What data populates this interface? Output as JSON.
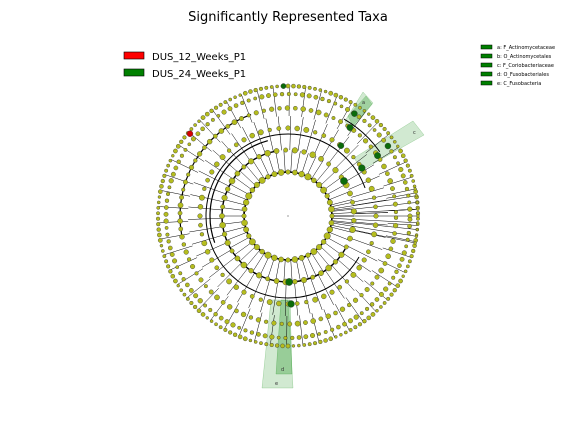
{
  "title": "Significantly Represented Taxa",
  "legend": [
    {
      "label": "DUS_12_Weeks_P1",
      "color": "#ff0000"
    },
    {
      "label": "DUS_24_Weeks_P1",
      "color": "#008000"
    }
  ],
  "taxa_key": [
    {
      "label": "a: F_Actinomycetaceae",
      "color": "#008000"
    },
    {
      "label": "b: O_Actinomycetales",
      "color": "#008000"
    },
    {
      "label": "c: F_Coriobacteriaceae",
      "color": "#008000"
    },
    {
      "label": "d: O_Fusobacteriales",
      "color": "#008000"
    },
    {
      "label": "e: C_Fusobacteria",
      "color": "#008000"
    }
  ],
  "clade_labels": [
    "a",
    "b",
    "c",
    "d",
    "e"
  ],
  "colors": {
    "node_default": "#b5bd1e",
    "node_enriched_24w": "#0b6b0b",
    "node_enriched_12w": "#d40000",
    "highlight": "#7cc47c"
  }
}
